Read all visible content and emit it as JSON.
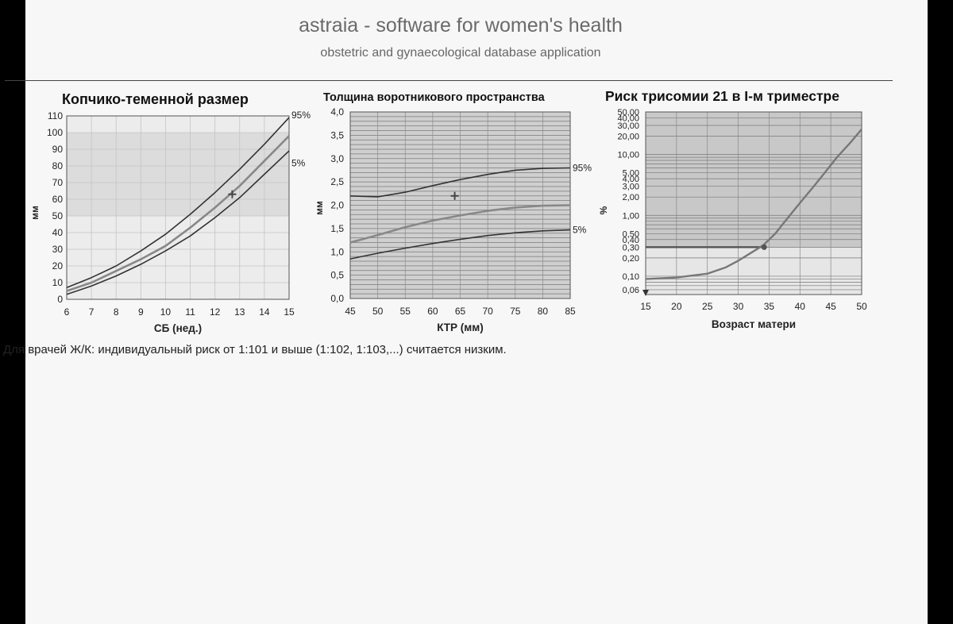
{
  "header": {
    "title": "astraia - software for women's health",
    "subtitle": "obstetric and gynaecological database application"
  },
  "footnote": "Для врачей Ж/К: индивидуальный риск от 1:101 и выше (1:102, 1:103,...) считается низким.",
  "chart_data": [
    {
      "type": "line",
      "title": "Копчико-теменной размер",
      "xlabel": "СБ (нед.)",
      "ylabel": "мм",
      "xlim": [
        6,
        15
      ],
      "ylim": [
        0,
        110
      ],
      "x_ticks": [
        "6",
        "7",
        "8",
        "9",
        "10",
        "11",
        "12",
        "13",
        "14",
        "15"
      ],
      "y_ticks": [
        "0",
        "10",
        "20",
        "30",
        "40",
        "50",
        "60",
        "70",
        "80",
        "90",
        "100",
        "110"
      ],
      "grid": true,
      "series": [
        {
          "name": "95%",
          "x": [
            6,
            7,
            8,
            9,
            10,
            11,
            12,
            13,
            14,
            15
          ],
          "values": [
            7,
            13,
            20,
            29,
            39,
            51,
            64,
            78,
            93,
            109
          ]
        },
        {
          "name": "",
          "x": [
            6,
            7,
            8,
            9,
            10,
            11,
            12,
            13,
            14,
            15
          ],
          "values": [
            5,
            10,
            17,
            24,
            32,
            43,
            55,
            68,
            83,
            98
          ]
        },
        {
          "name": "5%",
          "x": [
            6,
            7,
            8,
            9,
            10,
            11,
            12,
            13,
            14,
            15
          ],
          "values": [
            3,
            8,
            14,
            21,
            29,
            38,
            49,
            61,
            75,
            89
          ]
        }
      ],
      "marker": {
        "x": 12.7,
        "y": 63
      },
      "legend": "right"
    },
    {
      "type": "line",
      "title": "Толщина воротникового пространства",
      "xlabel": "КТР (мм)",
      "ylabel": "мм",
      "xlim": [
        45,
        85
      ],
      "ylim": [
        0,
        4
      ],
      "x_ticks": [
        "45",
        "50",
        "55",
        "60",
        "65",
        "70",
        "75",
        "80",
        "85"
      ],
      "y_ticks": [
        "0,0",
        "0,5",
        "1,0",
        "1,5",
        "2,0",
        "2,5",
        "3,0",
        "3,5",
        "4,0"
      ],
      "grid": true,
      "series": [
        {
          "name": "95%",
          "x": [
            45,
            50,
            55,
            60,
            65,
            70,
            75,
            80,
            85
          ],
          "values": [
            2.2,
            2.18,
            2.28,
            2.42,
            2.55,
            2.66,
            2.75,
            2.79,
            2.8
          ]
        },
        {
          "name": "",
          "x": [
            45,
            50,
            55,
            60,
            65,
            70,
            75,
            80,
            85
          ],
          "values": [
            1.2,
            1.36,
            1.53,
            1.67,
            1.78,
            1.88,
            1.95,
            1.99,
            2.0
          ]
        },
        {
          "name": "5%",
          "x": [
            45,
            50,
            55,
            60,
            65,
            70,
            75,
            80,
            85
          ],
          "values": [
            0.85,
            0.97,
            1.08,
            1.18,
            1.27,
            1.35,
            1.41,
            1.45,
            1.47
          ]
        }
      ],
      "marker": {
        "x": 64,
        "y": 2.2
      },
      "legend": "right"
    },
    {
      "type": "line",
      "title": "Риск трисомии 21 в I-м триместре",
      "xlabel": "Возраст матери",
      "ylabel": "%",
      "xlim": [
        15,
        50
      ],
      "ylim": [
        0.05,
        50
      ],
      "yscale": "log",
      "x_ticks": [
        "15",
        "20",
        "25",
        "30",
        "35",
        "40",
        "45",
        "50"
      ],
      "y_ticks": [
        "50,00",
        "40,00",
        "30,00",
        "20,00",
        "10,00",
        "5,00",
        "4,00",
        "3,00",
        "2,00",
        "1,00",
        "0,50",
        "0,40",
        "0,30",
        "0,20",
        "0,10",
        "0,06"
      ],
      "y_tick_values": [
        50,
        40,
        30,
        20,
        10,
        5,
        4,
        3,
        2,
        1,
        0.5,
        0.4,
        0.3,
        0.2,
        0.1,
        0.06
      ],
      "grid": true,
      "series": [
        {
          "name": "",
          "x": [
            15,
            20,
            25,
            28,
            30,
            32,
            34,
            36,
            38,
            40,
            42,
            44,
            46,
            48,
            50
          ],
          "values": [
            0.09,
            0.095,
            0.11,
            0.14,
            0.18,
            0.24,
            0.32,
            0.5,
            0.9,
            1.6,
            2.8,
            5,
            9,
            15,
            26
          ]
        }
      ],
      "patient_risk": 0.3,
      "marker": {
        "x": 34.2,
        "y": 0.3
      }
    }
  ]
}
